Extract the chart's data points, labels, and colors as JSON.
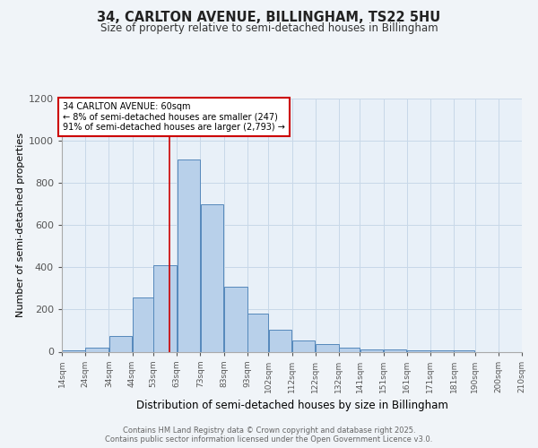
{
  "title1": "34, CARLTON AVENUE, BILLINGHAM, TS22 5HU",
  "title2": "Size of property relative to semi-detached houses in Billingham",
  "xlabel": "Distribution of semi-detached houses by size in Billingham",
  "ylabel": "Number of semi-detached properties",
  "footnote1": "Contains HM Land Registry data © Crown copyright and database right 2025.",
  "footnote2": "Contains public sector information licensed under the Open Government Licence v3.0.",
  "annotation_title": "34 CARLTON AVENUE: 60sqm",
  "annotation_line1": "← 8% of semi-detached houses are smaller (247)",
  "annotation_line2": "91% of semi-detached houses are larger (2,793) →",
  "bar_left_edges": [
    14,
    24,
    34,
    44,
    53,
    63,
    73,
    83,
    93,
    102,
    112,
    122,
    132,
    141,
    151,
    161,
    171,
    181,
    190,
    200
  ],
  "bar_widths": [
    10,
    10,
    10,
    9,
    10,
    10,
    10,
    10,
    9,
    10,
    10,
    10,
    9,
    10,
    10,
    10,
    10,
    9,
    10,
    10
  ],
  "bar_heights": [
    5,
    20,
    75,
    255,
    410,
    910,
    700,
    310,
    180,
    105,
    55,
    35,
    20,
    10,
    10,
    5,
    5,
    5,
    0,
    0
  ],
  "bar_color": "#b8d0ea",
  "bar_edge_color": "#5588bb",
  "property_line_x": 60,
  "property_line_color": "#cc0000",
  "annotation_box_color": "#ffffff",
  "annotation_box_edge": "#cc0000",
  "ylim": [
    0,
    1200
  ],
  "xlim": [
    14,
    210
  ],
  "xtick_labels": [
    "14sqm",
    "24sqm",
    "34sqm",
    "44sqm",
    "53sqm",
    "63sqm",
    "73sqm",
    "83sqm",
    "93sqm",
    "102sqm",
    "112sqm",
    "122sqm",
    "132sqm",
    "141sqm",
    "151sqm",
    "161sqm",
    "171sqm",
    "181sqm",
    "190sqm",
    "200sqm",
    "210sqm"
  ],
  "xtick_positions": [
    14,
    24,
    34,
    44,
    53,
    63,
    73,
    83,
    93,
    102,
    112,
    122,
    132,
    141,
    151,
    161,
    171,
    181,
    190,
    200,
    210
  ],
  "ytick_positions": [
    0,
    200,
    400,
    600,
    800,
    1000,
    1200
  ],
  "background_color": "#f0f4f8",
  "plot_bg_color": "#e8f0f8",
  "grid_color": "#c8d8e8"
}
